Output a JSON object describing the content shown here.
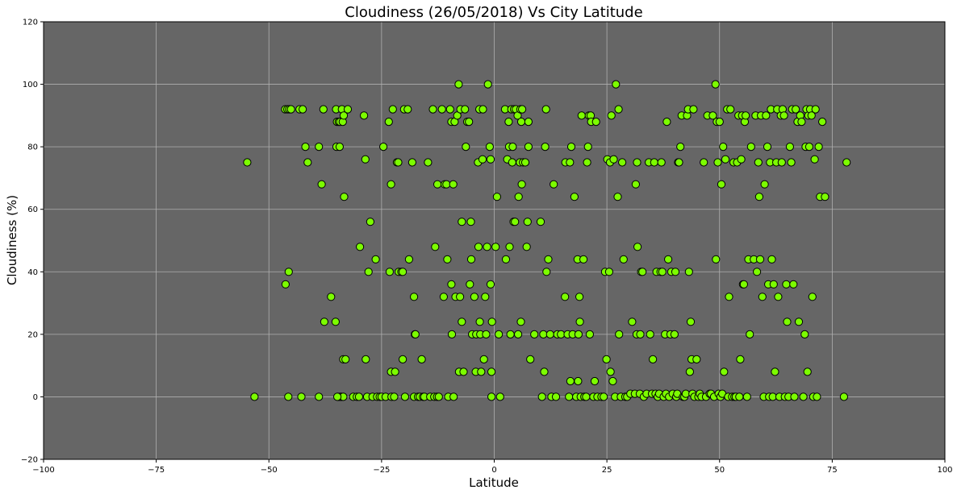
{
  "chart_data": {
    "type": "scatter",
    "title": "Cloudiness (26/05/2018) Vs City Latitude",
    "xlabel": "Latitude",
    "ylabel": "Cloudiness (%)",
    "xlim": [
      -100,
      100
    ],
    "ylim": [
      -20,
      120
    ],
    "xticks": [
      -100,
      -75,
      -50,
      -25,
      0,
      25,
      50,
      75,
      100
    ],
    "yticks": [
      -20,
      0,
      20,
      40,
      60,
      80,
      100,
      120
    ],
    "xtick_labels": [
      "−100",
      "−75",
      "−50",
      "−25",
      "0",
      "25",
      "50",
      "75",
      "100"
    ],
    "ytick_labels": [
      "−20",
      "0",
      "20",
      "40",
      "60",
      "80",
      "100",
      "120"
    ],
    "grid": true,
    "colors": {
      "plot_background": "#666666",
      "marker_fill": "#7cfc00",
      "marker_edge": "#000000",
      "grid": "#b0b0b0"
    },
    "points": [
      [
        -54.8,
        75
      ],
      [
        -53.2,
        0
      ],
      [
        -46.4,
        92
      ],
      [
        -45.9,
        92
      ],
      [
        -45.5,
        92
      ],
      [
        -45.1,
        92
      ],
      [
        -46.3,
        36
      ],
      [
        -45.6,
        40
      ],
      [
        -45.7,
        0
      ],
      [
        -43.2,
        92
      ],
      [
        -42.5,
        92
      ],
      [
        -41.9,
        80
      ],
      [
        -41.4,
        75
      ],
      [
        -42.8,
        0
      ],
      [
        -38.9,
        80
      ],
      [
        -38.3,
        68
      ],
      [
        -37.9,
        92
      ],
      [
        -37.7,
        24
      ],
      [
        -38.9,
        0
      ],
      [
        -36.2,
        32
      ],
      [
        -35.2,
        24
      ],
      [
        -35.1,
        92
      ],
      [
        -35.0,
        80
      ],
      [
        -34.9,
        88
      ],
      [
        -34.5,
        88
      ],
      [
        -34.3,
        80
      ],
      [
        -34.2,
        88
      ],
      [
        -33.8,
        92
      ],
      [
        -33.6,
        88
      ],
      [
        -33.4,
        90
      ],
      [
        -33.5,
        12
      ],
      [
        -33.3,
        64
      ],
      [
        -33.0,
        12
      ],
      [
        -32.5,
        92
      ],
      [
        -34.6,
        0
      ],
      [
        -34.2,
        0
      ],
      [
        -33.9,
        0
      ],
      [
        -33.5,
        0
      ],
      [
        -34.8,
        0
      ],
      [
        -31.3,
        0
      ],
      [
        -30.5,
        0
      ],
      [
        -30.0,
        0
      ],
      [
        -29.8,
        48
      ],
      [
        -28.9,
        90
      ],
      [
        -28.6,
        76
      ],
      [
        -28.5,
        12
      ],
      [
        -28.2,
        0
      ],
      [
        -27.9,
        40
      ],
      [
        -27.5,
        56
      ],
      [
        -27.0,
        0
      ],
      [
        -26.3,
        44
      ],
      [
        -26.0,
        0
      ],
      [
        -25.4,
        0
      ],
      [
        -25.0,
        0
      ],
      [
        -24.6,
        80
      ],
      [
        -24.1,
        0
      ],
      [
        -23.4,
        88
      ],
      [
        -23.2,
        40
      ],
      [
        -22.9,
        68
      ],
      [
        -22.9,
        8
      ],
      [
        -22.5,
        92
      ],
      [
        -22.8,
        0
      ],
      [
        -22.2,
        0
      ],
      [
        -22.0,
        8
      ],
      [
        -21.6,
        75
      ],
      [
        -21.3,
        75
      ],
      [
        -21.2,
        40
      ],
      [
        -20.6,
        40
      ],
      [
        -20.3,
        40
      ],
      [
        -20.3,
        12
      ],
      [
        -20.0,
        92
      ],
      [
        -19.8,
        0
      ],
      [
        -19.2,
        92
      ],
      [
        -18.9,
        44
      ],
      [
        -18.2,
        75
      ],
      [
        -17.8,
        32
      ],
      [
        -17.6,
        20
      ],
      [
        -17.5,
        20
      ],
      [
        -17.8,
        0
      ],
      [
        -16.9,
        0
      ],
      [
        -16.5,
        0
      ],
      [
        -16.1,
        12
      ],
      [
        -15.8,
        0
      ],
      [
        -15.5,
        0
      ],
      [
        -14.7,
        75
      ],
      [
        -14.2,
        0
      ],
      [
        -13.6,
        92
      ],
      [
        -13.3,
        0
      ],
      [
        -13.1,
        48
      ],
      [
        -12.7,
        0
      ],
      [
        -12.6,
        68
      ],
      [
        -12.3,
        0
      ],
      [
        -11.6,
        92
      ],
      [
        -11.2,
        32
      ],
      [
        -11.0,
        68
      ],
      [
        -10.6,
        68
      ],
      [
        -10.4,
        44
      ],
      [
        -10.2,
        0
      ],
      [
        -9.8,
        92
      ],
      [
        -9.5,
        88
      ],
      [
        -9.5,
        36
      ],
      [
        -9.4,
        20
      ],
      [
        -9.1,
        68
      ],
      [
        -9.0,
        0
      ],
      [
        -8.8,
        88
      ],
      [
        -8.6,
        32
      ],
      [
        -8.2,
        90
      ],
      [
        -7.9,
        100
      ],
      [
        -7.8,
        8
      ],
      [
        -7.5,
        92
      ],
      [
        -7.6,
        32
      ],
      [
        -7.2,
        24
      ],
      [
        -7.2,
        56
      ],
      [
        -6.8,
        8
      ],
      [
        -6.5,
        92
      ],
      [
        -6.3,
        80
      ],
      [
        -6.0,
        88
      ],
      [
        -5.6,
        88
      ],
      [
        -5.4,
        36
      ],
      [
        -5.2,
        56
      ],
      [
        -5.1,
        44
      ],
      [
        -4.9,
        20
      ],
      [
        -4.4,
        32
      ],
      [
        -4.1,
        8
      ],
      [
        -4.0,
        20
      ],
      [
        -3.6,
        75
      ],
      [
        -3.5,
        48
      ],
      [
        -3.3,
        92
      ],
      [
        -3.2,
        24
      ],
      [
        -3.1,
        20
      ],
      [
        -2.9,
        8
      ],
      [
        -2.6,
        76
      ],
      [
        -2.5,
        92
      ],
      [
        -2.3,
        12
      ],
      [
        -2.0,
        32
      ],
      [
        -1.8,
        20
      ],
      [
        -1.6,
        48
      ],
      [
        -1.4,
        100
      ],
      [
        -1.0,
        80
      ],
      [
        -0.8,
        76
      ],
      [
        -0.8,
        36
      ],
      [
        -0.6,
        8
      ],
      [
        -0.5,
        24
      ],
      [
        -0.6,
        0
      ],
      [
        0.3,
        48
      ],
      [
        0.6,
        64
      ],
      [
        1.0,
        20
      ],
      [
        1.3,
        0
      ],
      [
        2.4,
        92
      ],
      [
        2.6,
        44
      ],
      [
        2.9,
        76
      ],
      [
        3.2,
        88
      ],
      [
        3.3,
        80
      ],
      [
        3.4,
        48
      ],
      [
        3.6,
        20
      ],
      [
        3.8,
        92
      ],
      [
        4.0,
        75
      ],
      [
        4.1,
        80
      ],
      [
        4.3,
        56
      ],
      [
        4.4,
        92
      ],
      [
        4.6,
        56
      ],
      [
        4.8,
        92
      ],
      [
        5.2,
        90
      ],
      [
        5.3,
        20
      ],
      [
        5.4,
        64
      ],
      [
        5.7,
        75
      ],
      [
        5.8,
        92
      ],
      [
        5.9,
        24
      ],
      [
        6.0,
        88
      ],
      [
        6.1,
        68
      ],
      [
        6.2,
        92
      ],
      [
        6.4,
        75
      ],
      [
        6.9,
        75
      ],
      [
        7.2,
        48
      ],
      [
        7.4,
        56
      ],
      [
        7.6,
        88
      ],
      [
        7.6,
        80
      ],
      [
        8.0,
        12
      ],
      [
        8.9,
        20
      ],
      [
        10.3,
        56
      ],
      [
        10.6,
        0
      ],
      [
        10.9,
        20
      ],
      [
        11.1,
        8
      ],
      [
        11.3,
        80
      ],
      [
        11.5,
        92
      ],
      [
        11.6,
        40
      ],
      [
        12.0,
        44
      ],
      [
        12.4,
        20
      ],
      [
        12.7,
        0
      ],
      [
        13.2,
        68
      ],
      [
        13.7,
        0
      ],
      [
        14.0,
        20
      ],
      [
        14.8,
        20
      ],
      [
        15.7,
        32
      ],
      [
        15.8,
        75
      ],
      [
        16.3,
        20
      ],
      [
        16.6,
        0
      ],
      [
        16.8,
        75
      ],
      [
        16.9,
        5
      ],
      [
        17.1,
        80
      ],
      [
        17.4,
        20
      ],
      [
        17.8,
        64
      ],
      [
        18.2,
        0
      ],
      [
        18.5,
        44
      ],
      [
        18.6,
        5
      ],
      [
        18.7,
        20
      ],
      [
        18.9,
        32
      ],
      [
        19.0,
        24
      ],
      [
        19.2,
        0
      ],
      [
        19.4,
        90
      ],
      [
        19.8,
        44
      ],
      [
        20.0,
        0
      ],
      [
        20.4,
        0
      ],
      [
        20.6,
        75
      ],
      [
        20.8,
        80
      ],
      [
        21.0,
        90
      ],
      [
        21.2,
        20
      ],
      [
        21.4,
        90
      ],
      [
        21.5,
        88
      ],
      [
        22.0,
        0
      ],
      [
        22.3,
        5
      ],
      [
        22.6,
        88
      ],
      [
        22.9,
        0
      ],
      [
        23.8,
        0
      ],
      [
        24.3,
        0
      ],
      [
        24.6,
        40
      ],
      [
        24.9,
        12
      ],
      [
        25.1,
        76
      ],
      [
        25.5,
        40
      ],
      [
        25.7,
        75
      ],
      [
        25.8,
        8
      ],
      [
        26.0,
        90
      ],
      [
        26.3,
        5
      ],
      [
        26.5,
        76
      ],
      [
        26.8,
        0
      ],
      [
        27.0,
        100
      ],
      [
        27.4,
        64
      ],
      [
        27.6,
        92
      ],
      [
        27.7,
        20
      ],
      [
        28.1,
        0
      ],
      [
        28.4,
        75
      ],
      [
        28.7,
        44
      ],
      [
        29.1,
        0
      ],
      [
        29.5,
        0
      ],
      [
        30.2,
        1
      ],
      [
        30.6,
        24
      ],
      [
        31.2,
        1
      ],
      [
        31.4,
        68
      ],
      [
        31.6,
        20
      ],
      [
        31.7,
        75
      ],
      [
        31.8,
        48
      ],
      [
        32.3,
        1
      ],
      [
        32.4,
        20
      ],
      [
        32.6,
        40
      ],
      [
        32.9,
        40
      ],
      [
        33.2,
        0
      ],
      [
        33.8,
        1
      ],
      [
        34.3,
        75
      ],
      [
        34.6,
        20
      ],
      [
        35.0,
        1
      ],
      [
        35.2,
        12
      ],
      [
        35.5,
        75
      ],
      [
        35.8,
        1
      ],
      [
        36.0,
        40
      ],
      [
        36.3,
        0
      ],
      [
        36.6,
        1
      ],
      [
        36.9,
        40
      ],
      [
        37.1,
        75
      ],
      [
        37.3,
        40
      ],
      [
        37.6,
        0
      ],
      [
        37.9,
        20
      ],
      [
        38.1,
        1
      ],
      [
        38.3,
        88
      ],
      [
        38.6,
        44
      ],
      [
        38.8,
        0
      ],
      [
        39.1,
        20
      ],
      [
        39.3,
        40
      ],
      [
        39.6,
        1
      ],
      [
        40.0,
        20
      ],
      [
        40.2,
        40
      ],
      [
        40.4,
        0
      ],
      [
        40.6,
        1
      ],
      [
        40.8,
        75
      ],
      [
        41.0,
        75
      ],
      [
        41.3,
        80
      ],
      [
        41.6,
        90
      ],
      [
        41.9,
        0
      ],
      [
        42.2,
        0
      ],
      [
        42.5,
        1
      ],
      [
        42.8,
        90
      ],
      [
        43.0,
        92
      ],
      [
        43.2,
        40
      ],
      [
        43.4,
        8
      ],
      [
        43.6,
        24
      ],
      [
        43.8,
        12
      ],
      [
        44.0,
        1
      ],
      [
        44.2,
        92
      ],
      [
        44.4,
        0
      ],
      [
        44.9,
        12
      ],
      [
        45.3,
        0
      ],
      [
        45.6,
        1
      ],
      [
        46.0,
        0
      ],
      [
        46.5,
        75
      ],
      [
        47.0,
        0
      ],
      [
        47.3,
        90
      ],
      [
        47.8,
        1
      ],
      [
        48.1,
        1
      ],
      [
        48.5,
        90
      ],
      [
        48.8,
        0
      ],
      [
        49.1,
        100
      ],
      [
        49.2,
        44
      ],
      [
        49.4,
        88
      ],
      [
        49.6,
        75
      ],
      [
        49.8,
        1
      ],
      [
        50.0,
        88
      ],
      [
        50.2,
        0
      ],
      [
        50.4,
        68
      ],
      [
        50.6,
        1
      ],
      [
        50.8,
        80
      ],
      [
        51.0,
        8
      ],
      [
        51.3,
        76
      ],
      [
        51.7,
        92
      ],
      [
        51.9,
        0
      ],
      [
        52.1,
        32
      ],
      [
        52.4,
        92
      ],
      [
        52.8,
        0
      ],
      [
        53.1,
        75
      ],
      [
        53.3,
        0
      ],
      [
        53.6,
        0
      ],
      [
        53.9,
        75
      ],
      [
        54.2,
        90
      ],
      [
        54.4,
        0
      ],
      [
        54.6,
        12
      ],
      [
        54.8,
        76
      ],
      [
        55.0,
        90
      ],
      [
        55.2,
        36
      ],
      [
        55.4,
        36
      ],
      [
        55.6,
        88
      ],
      [
        55.8,
        90
      ],
      [
        56.1,
        0
      ],
      [
        56.4,
        44
      ],
      [
        56.7,
        20
      ],
      [
        57.0,
        80
      ],
      [
        57.6,
        44
      ],
      [
        58.0,
        90
      ],
      [
        58.3,
        40
      ],
      [
        58.6,
        75
      ],
      [
        58.8,
        64
      ],
      [
        59.0,
        44
      ],
      [
        59.2,
        90
      ],
      [
        59.5,
        32
      ],
      [
        59.8,
        0
      ],
      [
        60.0,
        68
      ],
      [
        60.3,
        90
      ],
      [
        60.6,
        80
      ],
      [
        60.8,
        36
      ],
      [
        61.0,
        0
      ],
      [
        61.2,
        75
      ],
      [
        61.4,
        92
      ],
      [
        61.6,
        44
      ],
      [
        61.8,
        0
      ],
      [
        62.0,
        36
      ],
      [
        62.3,
        8
      ],
      [
        62.6,
        75
      ],
      [
        62.8,
        92
      ],
      [
        63.0,
        32
      ],
      [
        63.3,
        0
      ],
      [
        63.6,
        90
      ],
      [
        63.8,
        75
      ],
      [
        64.0,
        92
      ],
      [
        64.3,
        90
      ],
      [
        64.5,
        0
      ],
      [
        64.8,
        36
      ],
      [
        65.0,
        24
      ],
      [
        65.3,
        0
      ],
      [
        65.6,
        80
      ],
      [
        65.9,
        75
      ],
      [
        66.1,
        92
      ],
      [
        66.4,
        36
      ],
      [
        66.6,
        0
      ],
      [
        66.9,
        92
      ],
      [
        67.3,
        88
      ],
      [
        67.6,
        24
      ],
      [
        67.9,
        90
      ],
      [
        68.2,
        88
      ],
      [
        68.6,
        0
      ],
      [
        68.9,
        20
      ],
      [
        69.1,
        80
      ],
      [
        69.3,
        92
      ],
      [
        69.5,
        8
      ],
      [
        69.7,
        90
      ],
      [
        69.9,
        80
      ],
      [
        70.1,
        92
      ],
      [
        70.4,
        90
      ],
      [
        70.6,
        32
      ],
      [
        70.8,
        0
      ],
      [
        71.1,
        76
      ],
      [
        71.3,
        92
      ],
      [
        71.6,
        0
      ],
      [
        72.0,
        80
      ],
      [
        72.3,
        64
      ],
      [
        72.8,
        88
      ],
      [
        73.4,
        64
      ],
      [
        77.6,
        0
      ],
      [
        78.2,
        75
      ]
    ]
  }
}
